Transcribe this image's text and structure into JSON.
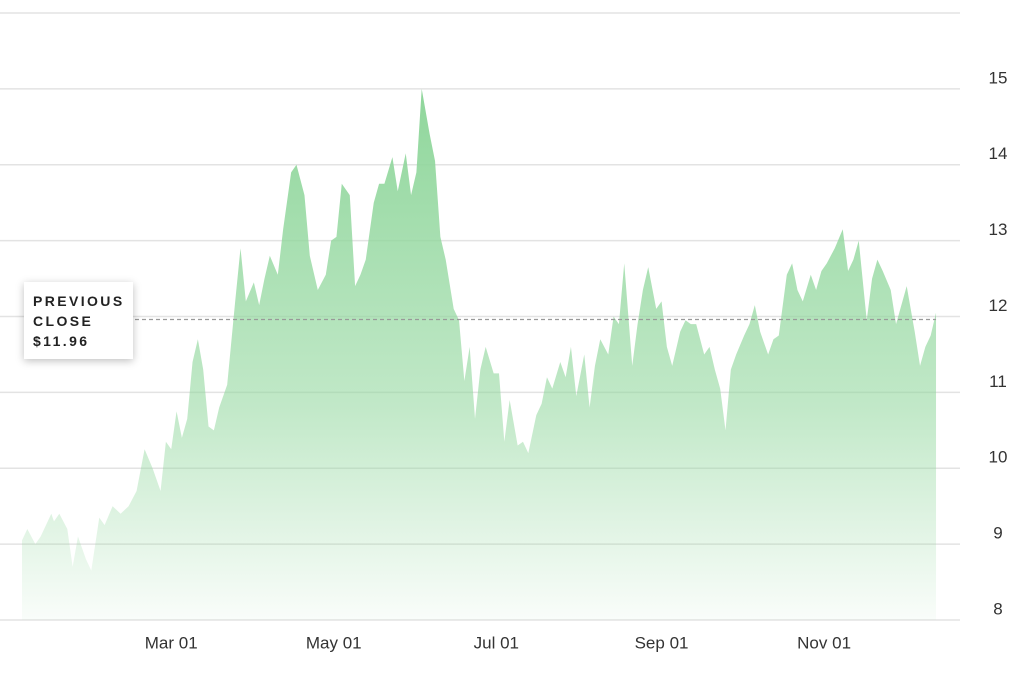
{
  "chart_data": {
    "type": "area",
    "x": [
      "Jan 04",
      "Jan 06",
      "Jan 09",
      "Jan 11",
      "Jan 15",
      "Jan 16",
      "Jan 18",
      "Jan 21",
      "Jan 23",
      "Jan 25",
      "Jan 28",
      "Jan 30",
      "Feb 02",
      "Feb 04",
      "Feb 07",
      "Feb 10",
      "Feb 13",
      "Feb 16",
      "Feb 19",
      "Feb 22",
      "Feb 25",
      "Feb 27",
      "Mar 01",
      "Mar 03",
      "Mar 05",
      "Mar 07",
      "Mar 09",
      "Mar 11",
      "Mar 13",
      "Mar 15",
      "Mar 17",
      "Mar 19",
      "Mar 22",
      "Mar 25",
      "Mar 27",
      "Mar 29",
      "Apr 01",
      "Apr 03",
      "Apr 05",
      "Apr 07",
      "Apr 10",
      "Apr 12",
      "Apr 15",
      "Apr 17",
      "Apr 20",
      "Apr 22",
      "Apr 25",
      "Apr 28",
      "Apr 30",
      "May 02",
      "May 04",
      "May 07",
      "May 09",
      "May 11",
      "May 13",
      "May 16",
      "May 18",
      "May 20",
      "May 23",
      "May 25",
      "May 28",
      "May 30",
      "Jun 01",
      "Jun 03",
      "Jun 06",
      "Jun 08",
      "Jun 10",
      "Jun 12",
      "Jun 15",
      "Jun 17",
      "Jun 19",
      "Jun 21",
      "Jun 23",
      "Jun 25",
      "Jun 27",
      "Jun 30",
      "Jul 02",
      "Jul 04",
      "Jul 06",
      "Jul 09",
      "Jul 11",
      "Jul 13",
      "Jul 16",
      "Jul 18",
      "Jul 20",
      "Jul 22",
      "Jul 25",
      "Jul 27",
      "Jul 29",
      "Jul 31",
      "Aug 03",
      "Aug 05",
      "Aug 07",
      "Aug 09",
      "Aug 12",
      "Aug 14",
      "Aug 16",
      "Aug 18",
      "Aug 21",
      "Aug 23",
      "Aug 25",
      "Aug 27",
      "Aug 30",
      "Sep 01",
      "Sep 03",
      "Sep 05",
      "Sep 08",
      "Sep 10",
      "Sep 12",
      "Sep 14",
      "Sep 17",
      "Sep 19",
      "Sep 21",
      "Sep 23",
      "Sep 25",
      "Sep 27",
      "Sep 29",
      "Oct 02",
      "Oct 04",
      "Oct 06",
      "Oct 08",
      "Oct 11",
      "Oct 13",
      "Oct 15",
      "Oct 18",
      "Oct 20",
      "Oct 22",
      "Oct 24",
      "Oct 27",
      "Oct 29",
      "Oct 31",
      "Nov 02",
      "Nov 05",
      "Nov 08",
      "Nov 10",
      "Nov 12",
      "Nov 14",
      "Nov 17",
      "Nov 19",
      "Nov 21",
      "Nov 23",
      "Nov 26",
      "Nov 28",
      "Nov 30",
      "Dec 02",
      "Dec 05",
      "Dec 07",
      "Dec 09",
      "Dec 11",
      "Dec 13"
    ],
    "series": [
      {
        "color": "#8fd69b",
        "values": [
          9.05,
          9.2,
          9.0,
          9.1,
          9.4,
          9.3,
          9.4,
          9.2,
          8.7,
          9.1,
          8.8,
          8.65,
          9.35,
          9.25,
          9.5,
          9.4,
          9.5,
          9.7,
          10.25,
          10.0,
          9.7,
          10.35,
          10.25,
          10.75,
          10.4,
          10.65,
          11.4,
          11.7,
          11.3,
          10.55,
          10.5,
          10.8,
          11.1,
          12.2,
          12.9,
          12.2,
          12.45,
          12.15,
          12.5,
          12.8,
          12.55,
          13.15,
          13.9,
          14.0,
          13.6,
          12.8,
          12.35,
          12.55,
          13.0,
          13.05,
          13.75,
          13.6,
          12.4,
          12.55,
          12.75,
          13.5,
          13.75,
          13.75,
          14.1,
          13.65,
          14.15,
          13.6,
          13.9,
          15.0,
          14.4,
          14.05,
          13.05,
          12.75,
          12.1,
          11.95,
          11.15,
          11.6,
          10.65,
          11.3,
          11.6,
          11.25,
          11.25,
          10.35,
          10.9,
          10.3,
          10.35,
          10.2,
          10.7,
          10.85,
          11.2,
          11.05,
          11.4,
          11.2,
          11.6,
          10.95,
          11.5,
          10.8,
          11.35,
          11.7,
          11.5,
          12.0,
          11.9,
          12.7,
          11.35,
          11.9,
          12.35,
          12.65,
          12.1,
          12.2,
          11.6,
          11.35,
          11.8,
          11.95,
          11.9,
          11.9,
          11.5,
          11.6,
          11.3,
          11.05,
          10.5,
          11.3,
          11.5,
          11.75,
          11.9,
          12.15,
          11.8,
          11.5,
          11.7,
          11.75,
          12.55,
          12.7,
          12.35,
          12.2,
          12.55,
          12.35,
          12.6,
          12.7,
          12.9,
          13.15,
          12.6,
          12.75,
          13.0,
          11.95,
          12.5,
          12.75,
          12.6,
          12.35,
          11.9,
          12.15,
          12.4,
          11.8,
          11.35,
          11.6,
          11.75,
          12.05
        ]
      }
    ],
    "xlim": [
      "Jan 04",
      "Dec 22"
    ],
    "xticks": [
      "Mar 01",
      "May 01",
      "Jul 01",
      "Sep 01",
      "Nov 01"
    ],
    "ylim": [
      8,
      16
    ],
    "yticks": [
      8,
      9,
      10,
      11,
      12,
      13,
      14,
      15
    ],
    "grid": true,
    "previous_close": {
      "label": "PREVIOUS CLOSE",
      "value": 11.96,
      "value_label": "$11.96"
    }
  }
}
